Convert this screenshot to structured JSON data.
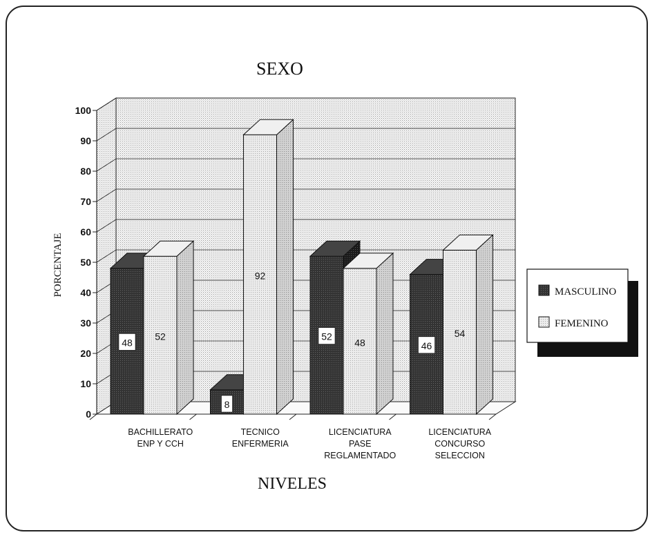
{
  "chart_data": {
    "type": "bar",
    "title": "SEXO",
    "xlabel": "NIVELES",
    "ylabel": "PORCENTAJE",
    "ylim": [
      0,
      100
    ],
    "yticks": [
      "0",
      "10",
      "20",
      "30",
      "40",
      "50",
      "60",
      "70",
      "80",
      "90",
      "100"
    ],
    "categories": [
      [
        "BACHILLERATO",
        "ENP Y CCH"
      ],
      [
        "TECNICO",
        "ENFERMERIA"
      ],
      [
        "LICENCIATURA",
        "PASE",
        "REGLAMENTADO"
      ],
      [
        "LICENCIATURA",
        "CONCURSO",
        "SELECCION"
      ]
    ],
    "series": [
      {
        "name": "MASCULINO",
        "values": [
          48,
          8,
          52,
          46
        ],
        "labels": [
          "48",
          "8",
          "52",
          "46"
        ],
        "color": "#2a2a2a"
      },
      {
        "name": "FEMENINO",
        "values": [
          52,
          92,
          48,
          54
        ],
        "labels": [
          "52",
          "92",
          "48",
          "54"
        ],
        "color": "#e2e2e2"
      }
    ],
    "grid": true,
    "legend": "right",
    "style": "3d-bars"
  }
}
